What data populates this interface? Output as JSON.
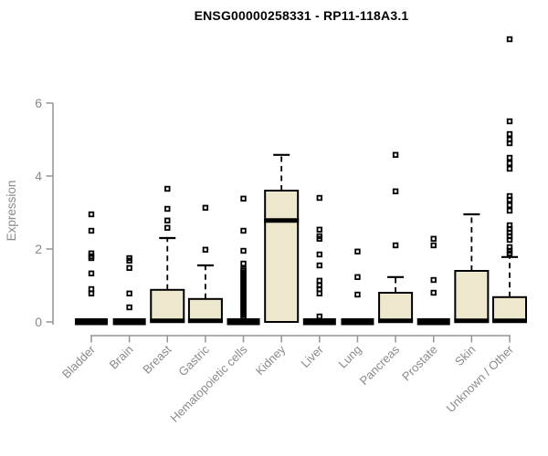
{
  "chart_data": {
    "type": "boxplot",
    "title": "ENSG00000258331 - RP11-118A3.1",
    "ylabel": "Expression",
    "xlabel": "",
    "yticks": [
      0,
      2,
      4,
      6
    ],
    "ylim": [
      0,
      6
    ],
    "grid": false,
    "legend": false,
    "categories": [
      "Bladder",
      "Brain",
      "Breast",
      "Gastric",
      "Hematopoietic cells",
      "Kidney",
      "Liver",
      "Lung",
      "Pancreas",
      "Prostate",
      "Skin",
      "Unknown / Other"
    ],
    "boxes": [
      {
        "label": "Bladder",
        "q1": 0,
        "median": 0.02,
        "q3": 0.05,
        "whisker_low": 0,
        "whisker_high": 0.05,
        "outliers": [
          2.95,
          2.5,
          1.88,
          1.8,
          1.75,
          1.33,
          0.9,
          0.78
        ]
      },
      {
        "label": "Brain",
        "q1": 0,
        "median": 0.02,
        "q3": 0.05,
        "whisker_low": 0,
        "whisker_high": 0.05,
        "outliers": [
          1.75,
          1.68,
          1.48,
          0.78,
          0.4
        ]
      },
      {
        "label": "Breast",
        "q1": 0,
        "median": 0.03,
        "q3": 0.88,
        "whisker_low": 0,
        "whisker_high": 2.3,
        "outliers": [
          3.65,
          3.1,
          2.78,
          2.58
        ]
      },
      {
        "label": "Gastric",
        "q1": 0,
        "median": 0.03,
        "q3": 0.63,
        "whisker_low": 0,
        "whisker_high": 1.55,
        "outliers": [
          3.13,
          1.98
        ]
      },
      {
        "label": "Hematopoietic cells",
        "q1": 0,
        "median": 0.02,
        "q3": 0.05,
        "whisker_low": 0,
        "whisker_high": 0.05,
        "outliers": [
          3.38,
          2.5,
          1.95,
          1.6,
          1.45,
          1.4,
          1.35,
          1.3,
          1.25,
          1.2,
          1.15,
          1.1,
          1.05,
          1.0,
          0.95,
          0.9,
          0.85,
          0.8,
          0.75,
          0.7,
          0.65,
          0.6,
          0.55,
          0.5,
          0.45,
          0.4,
          0.35,
          0.3,
          0.25,
          0.2,
          0.15,
          0.1
        ]
      },
      {
        "label": "Kidney",
        "q1": 0,
        "median": 2.78,
        "q3": 3.6,
        "whisker_low": 0,
        "whisker_high": 4.58,
        "outliers": []
      },
      {
        "label": "Liver",
        "q1": 0,
        "median": 0.02,
        "q3": 0.05,
        "whisker_low": 0,
        "whisker_high": 0.05,
        "outliers": [
          3.4,
          2.53,
          2.35,
          2.28,
          1.85,
          1.55,
          1.13,
          1.0,
          0.9,
          0.78,
          0.15
        ]
      },
      {
        "label": "Lung",
        "q1": 0,
        "median": 0.02,
        "q3": 0.05,
        "whisker_low": 0,
        "whisker_high": 0.05,
        "outliers": [
          1.93,
          1.23,
          0.75
        ]
      },
      {
        "label": "Pancreas",
        "q1": 0,
        "median": 0.03,
        "q3": 0.8,
        "whisker_low": 0,
        "whisker_high": 1.23,
        "outliers": [
          4.58,
          3.58,
          2.1
        ]
      },
      {
        "label": "Prostate",
        "q1": 0,
        "median": 0.02,
        "q3": 0.05,
        "whisker_low": 0,
        "whisker_high": 0.05,
        "outliers": [
          2.28,
          2.1,
          1.15,
          0.8
        ]
      },
      {
        "label": "Skin",
        "q1": 0,
        "median": 0.03,
        "q3": 1.4,
        "whisker_low": 0,
        "whisker_high": 2.95,
        "outliers": []
      },
      {
        "label": "Unknown / Other",
        "q1": 0,
        "median": 0.03,
        "q3": 0.68,
        "whisker_low": 0,
        "whisker_high": 1.78,
        "outliers": [
          7.75,
          5.5,
          5.15,
          5.0,
          4.9,
          4.5,
          4.35,
          4.2,
          3.45,
          3.35,
          3.2,
          3.05,
          2.65,
          2.55,
          2.45,
          2.35,
          2.25,
          2.05,
          1.95,
          1.88
        ]
      }
    ],
    "style": {
      "box_fill": "#EDE7CD",
      "box_stroke": "#000000",
      "axis_color": "#949494",
      "label_color": "#8a8a8a",
      "title_color": "#000000"
    }
  }
}
